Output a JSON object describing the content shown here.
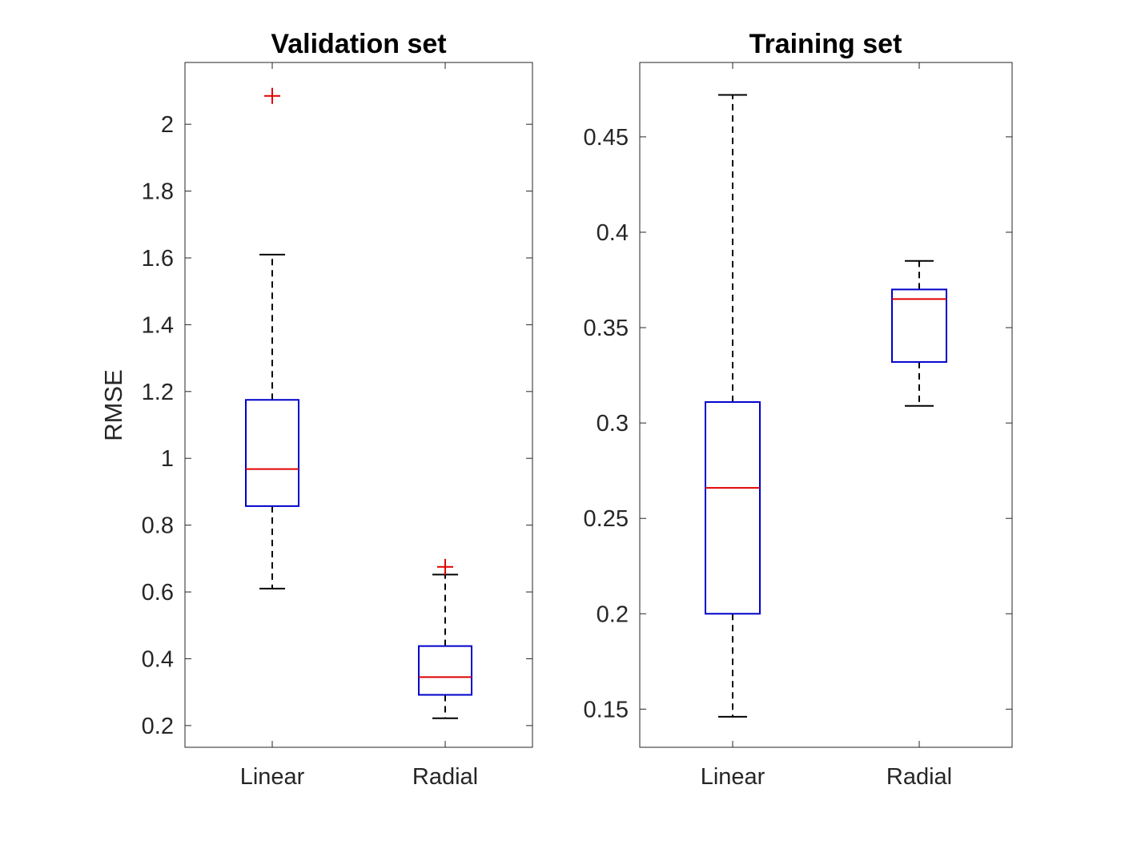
{
  "chart_data": [
    {
      "type": "boxplot",
      "title": "Validation set",
      "ylabel": "RMSE",
      "xlabel": "",
      "categories": [
        "Linear",
        "Radial"
      ],
      "ylim": [
        0.135,
        2.185
      ],
      "yticks": [
        0.2,
        0.4,
        0.6,
        0.8,
        1,
        1.2,
        1.4,
        1.6,
        1.8,
        2
      ],
      "ytick_labels": [
        "0.2",
        "0.4",
        "0.6",
        "0.8",
        "1",
        "1.2",
        "1.4",
        "1.6",
        "1.8",
        "2"
      ],
      "boxes": [
        {
          "category": "Linear",
          "whisker_low": 0.61,
          "q1": 0.857,
          "median": 0.968,
          "q3": 1.175,
          "whisker_high": 1.61,
          "outliers": [
            2.085
          ]
        },
        {
          "category": "Radial",
          "whisker_low": 0.222,
          "q1": 0.292,
          "median": 0.345,
          "q3": 0.438,
          "whisker_high": 0.652,
          "outliers": [
            0.675
          ]
        }
      ],
      "colors": {
        "box": "#0000cc",
        "median": "#e00000",
        "whisker": "#000000",
        "outlier": "#e00000"
      }
    },
    {
      "type": "boxplot",
      "title": "Training set",
      "ylabel": "",
      "xlabel": "",
      "categories": [
        "Linear",
        "Radial"
      ],
      "ylim": [
        0.13,
        0.489
      ],
      "yticks": [
        0.15,
        0.2,
        0.25,
        0.3,
        0.35,
        0.4,
        0.45
      ],
      "ytick_labels": [
        "0.15",
        "0.2",
        "0.25",
        "0.3",
        "0.35",
        "0.4",
        "0.45"
      ],
      "boxes": [
        {
          "category": "Linear",
          "whisker_low": 0.146,
          "q1": 0.2,
          "median": 0.266,
          "q3": 0.311,
          "whisker_high": 0.472,
          "outliers": []
        },
        {
          "category": "Radial",
          "whisker_low": 0.309,
          "q1": 0.332,
          "median": 0.365,
          "q3": 0.37,
          "whisker_high": 0.385,
          "outliers": []
        }
      ],
      "colors": {
        "box": "#0000cc",
        "median": "#e00000",
        "whisker": "#000000",
        "outlier": "#e00000"
      }
    }
  ]
}
